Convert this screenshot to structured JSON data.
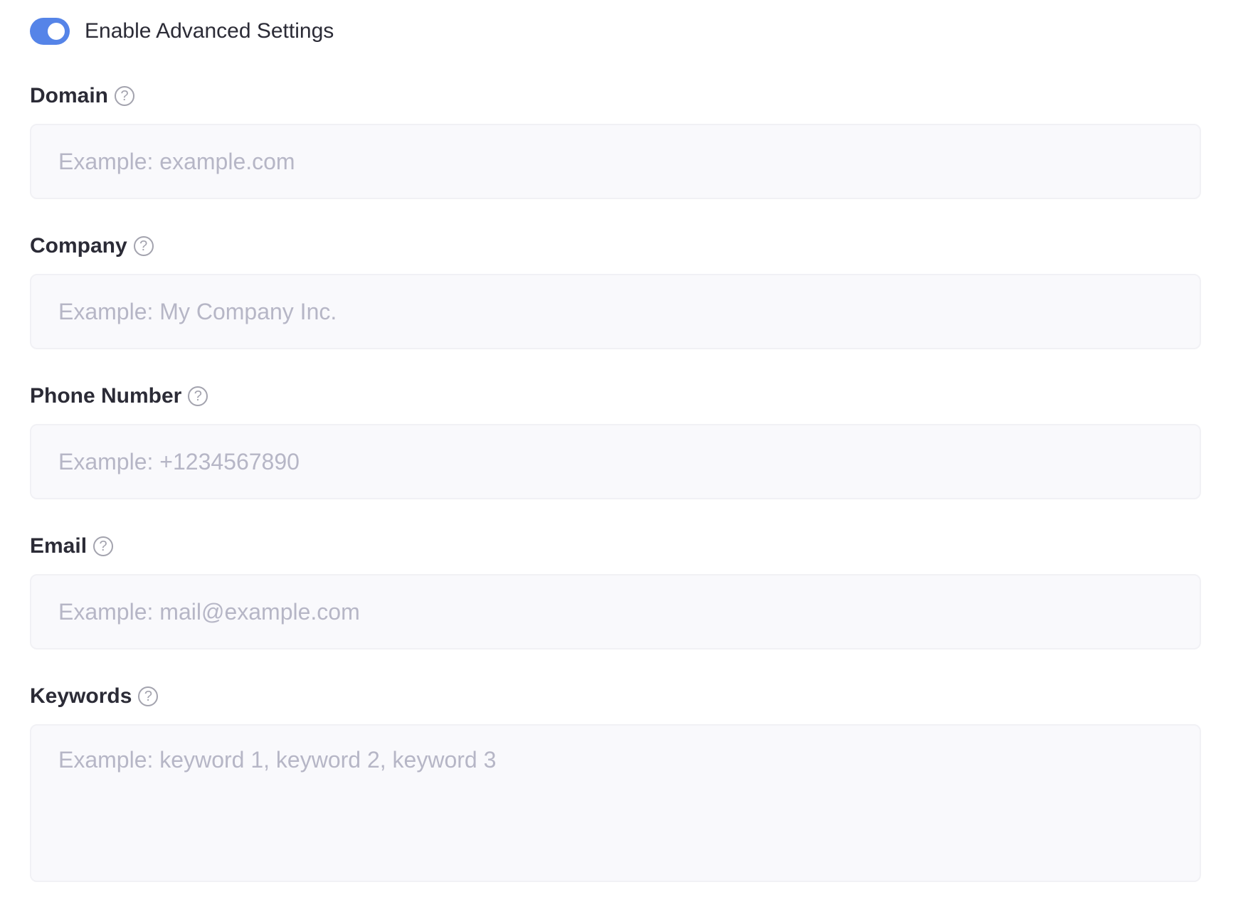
{
  "toggle": {
    "label": "Enable Advanced Settings",
    "enabled": true,
    "color": "#5584e8"
  },
  "fields": [
    {
      "label": "Domain",
      "placeholder": "Example: example.com",
      "value": "",
      "help_icon": "question-circle-icon"
    },
    {
      "label": "Company",
      "placeholder": "Example: My Company Inc.",
      "value": "",
      "help_icon": "question-circle-icon"
    },
    {
      "label": "Phone Number",
      "placeholder": "Example: +1234567890",
      "value": "",
      "help_icon": "question-circle-icon"
    },
    {
      "label": "Email",
      "placeholder": "Example: mail@example.com",
      "value": "",
      "help_icon": "question-circle-icon"
    },
    {
      "label": "Keywords",
      "placeholder": "Example: keyword 1, keyword 2, keyword 3",
      "value": "",
      "help_icon": "question-circle-icon"
    }
  ],
  "help_glyph": "?"
}
